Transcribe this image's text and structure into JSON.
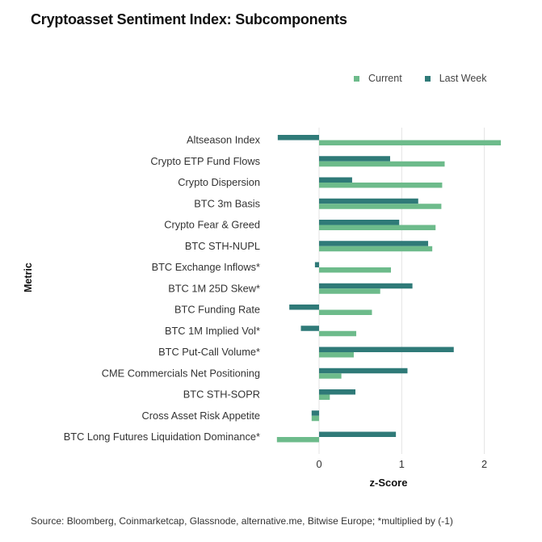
{
  "chart_data": {
    "type": "bar",
    "orientation": "horizontal",
    "title": "Cryptoasset Sentiment Index: Subcomponents",
    "xlabel": "z-Score",
    "ylabel": "Metric",
    "xlim": [
      -0.55,
      2.25
    ],
    "xticks": [
      "0",
      "1",
      "2"
    ],
    "grid": "vertical",
    "legend_position": "top-right",
    "categories": [
      "Altseason Index",
      "Crypto ETP Fund Flows",
      "Crypto Dispersion",
      "BTC 3m Basis",
      "Crypto Fear & Greed",
      "BTC STH-NUPL",
      "BTC Exchange Inflows*",
      "BTC 1M 25D Skew*",
      "BTC Funding Rate",
      "BTC 1M Implied Vol*",
      "BTC Put-Call Volume*",
      "CME Commercials Net Positioning",
      "BTC STH-SOPR",
      "Cross Asset Risk Appetite",
      "BTC Long Futures Liquidation Dominance*"
    ],
    "series": [
      {
        "name": "Current",
        "color": "#6dbb8b",
        "values": [
          2.2,
          1.52,
          1.49,
          1.48,
          1.41,
          1.37,
          0.87,
          0.74,
          0.64,
          0.45,
          0.42,
          0.27,
          0.13,
          -0.09,
          -0.51
        ]
      },
      {
        "name": "Last Week",
        "color": "#2f7a78",
        "values": [
          -0.5,
          0.86,
          0.4,
          1.2,
          0.97,
          1.32,
          -0.05,
          1.13,
          -0.36,
          -0.22,
          1.63,
          1.07,
          0.44,
          -0.09,
          0.93
        ]
      }
    ]
  },
  "source": "Source: Bloomberg, Coinmarketcap, Glassnode, alternative.me, Bitwise Europe; *multiplied by (-1)"
}
